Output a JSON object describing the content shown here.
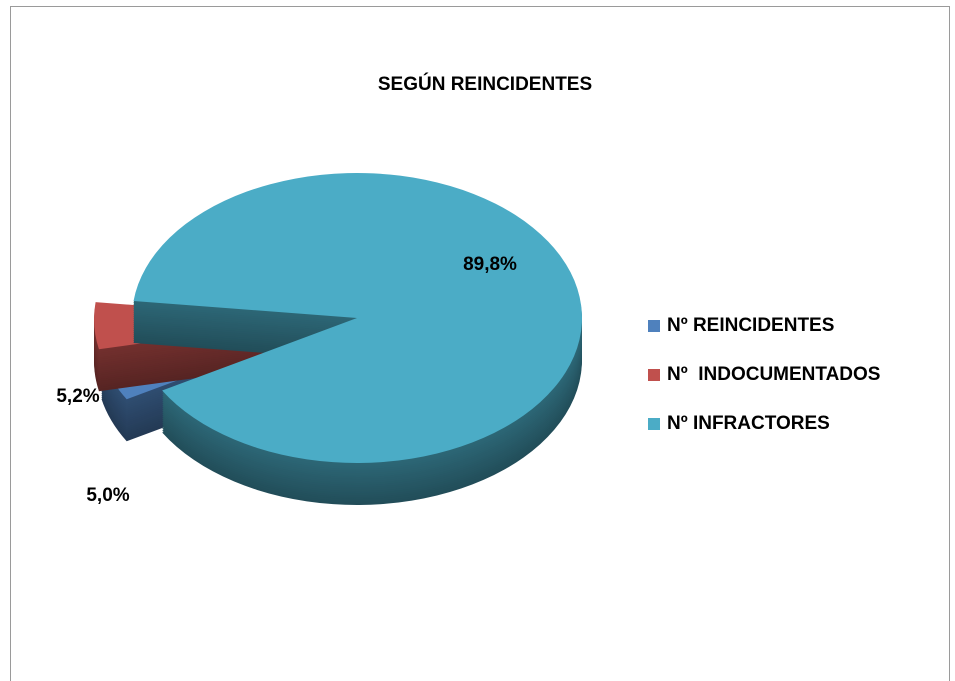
{
  "chart_data": {
    "type": "pie",
    "title": "SEGÚN REINCIDENTES",
    "categories": [
      "Nº REINCIDENTES",
      "Nº  INDOCUMENTADOS",
      "Nº INFRACTORES"
    ],
    "values": [
      5.0,
      5.2,
      89.8
    ],
    "value_labels": [
      "5,0%",
      "5,2%",
      "89,8%"
    ],
    "colors": [
      "#4f81bd",
      "#c0504d",
      "#4bacc6"
    ],
    "legend": "right"
  }
}
